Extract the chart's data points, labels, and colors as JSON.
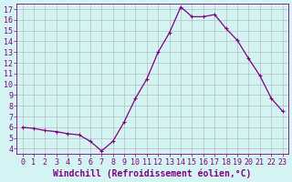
{
  "x": [
    0,
    1,
    2,
    3,
    4,
    5,
    6,
    7,
    8,
    9,
    10,
    11,
    12,
    13,
    14,
    15,
    16,
    17,
    18,
    19,
    20,
    21,
    22,
    23
  ],
  "y": [
    6.0,
    5.9,
    5.7,
    5.6,
    5.4,
    5.3,
    4.7,
    3.8,
    4.7,
    6.5,
    8.7,
    10.5,
    13.0,
    14.8,
    17.2,
    16.3,
    16.3,
    16.5,
    15.2,
    14.1,
    12.4,
    10.8,
    8.7,
    7.5
  ],
  "line_color": "#800080",
  "marker": "+",
  "marker_size": 3,
  "marker_lw": 0.8,
  "line_width": 0.9,
  "bg_color": "#d4f4f4",
  "grid_color": "#b0b0b0",
  "xlabel": "Windchill (Refroidissement éolien,°C)",
  "xlim": [
    -0.5,
    23.5
  ],
  "ylim": [
    3.5,
    17.5
  ],
  "xticks": [
    0,
    1,
    2,
    3,
    4,
    5,
    6,
    7,
    8,
    9,
    10,
    11,
    12,
    13,
    14,
    15,
    16,
    17,
    18,
    19,
    20,
    21,
    22,
    23
  ],
  "yticks": [
    4,
    5,
    6,
    7,
    8,
    9,
    10,
    11,
    12,
    13,
    14,
    15,
    16,
    17
  ],
  "tick_color": "#800080",
  "label_color": "#800080",
  "font_size": 6,
  "xlabel_font_size": 7
}
